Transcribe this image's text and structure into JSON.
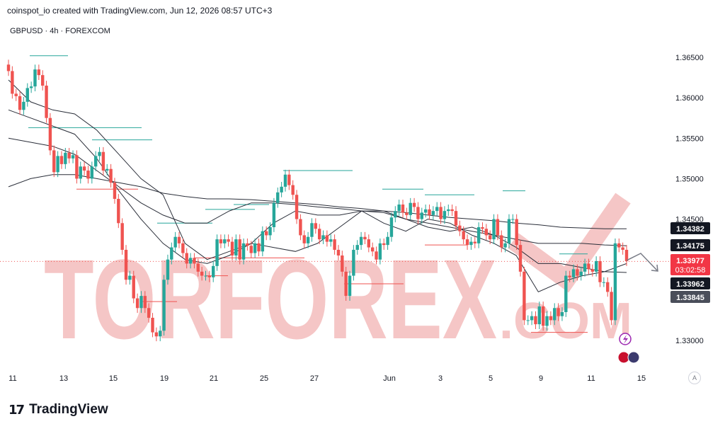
{
  "header": {
    "credit": "coinspot_io created with TradingView.com, Jun 12, 2026 08:57 UTC+3",
    "symbol_line": "GBPUSD · 4h · FOREXCOM"
  },
  "footer": {
    "brand": "TradingView",
    "auto_button": "A"
  },
  "watermark": {
    "text": "TORFOREX",
    "suffix": ".COM"
  },
  "colors": {
    "bull": "#26a69a",
    "bear": "#ef5350",
    "ma": "#2a2e39",
    "watermark": "#f5c6c6",
    "price_label": "#f23645",
    "label_dark": "#131722"
  },
  "chart_data": {
    "type": "candlestick",
    "symbol": "GBPUSD",
    "timeframe": "4h",
    "source": "FOREXCOM",
    "x_tick_labels": [
      "11",
      "13",
      "15",
      "19",
      "21",
      "25",
      "27",
      "Jun",
      "3",
      "5",
      "9",
      "11",
      "15"
    ],
    "y_ticks": [
      1.33,
      1.335,
      1.34,
      1.345,
      1.35,
      1.355,
      1.36,
      1.365
    ],
    "y_tick_labels": [
      "1.33000",
      "1.33500",
      "1.34000",
      "1.34500",
      "1.35000",
      "1.35500",
      "1.36000",
      "1.36500"
    ],
    "ylim": [
      1.3282,
      1.3672
    ],
    "candles_closes": [
      1.3633,
      1.3605,
      1.3602,
      1.3585,
      1.3595,
      1.3612,
      1.3614,
      1.3635,
      1.3628,
      1.3615,
      1.3575,
      1.3535,
      1.3508,
      1.3528,
      1.3518,
      1.3532,
      1.3525,
      1.3529,
      1.35,
      1.3515,
      1.351,
      1.35,
      1.3515,
      1.3528,
      1.3533,
      1.351,
      1.3512,
      1.3495,
      1.3475,
      1.3445,
      1.3412,
      1.3375,
      1.338,
      1.3352,
      1.334,
      1.3355,
      1.334,
      1.3328,
      1.331,
      1.3305,
      1.3312,
      1.3375,
      1.34,
      1.3415,
      1.3428,
      1.342,
      1.3408,
      1.3395,
      1.3402,
      1.3395,
      1.3385,
      1.338,
      1.338,
      1.3378,
      1.3392,
      1.3425,
      1.342,
      1.3425,
      1.3422,
      1.3405,
      1.3425,
      1.34,
      1.342,
      1.3417,
      1.3408,
      1.342,
      1.341,
      1.3435,
      1.343,
      1.344,
      1.347,
      1.3483,
      1.349,
      1.3505,
      1.3492,
      1.348,
      1.345,
      1.343,
      1.342,
      1.3428,
      1.3445,
      1.3438,
      1.3425,
      1.343,
      1.3422,
      1.3425,
      1.3412,
      1.3405,
      1.3385,
      1.3355,
      1.338,
      1.3412,
      1.3418,
      1.3428,
      1.3425,
      1.3415,
      1.341,
      1.34,
      1.342,
      1.3418,
      1.3428,
      1.3452,
      1.346,
      1.3468,
      1.3458,
      1.3455,
      1.347,
      1.3465,
      1.345,
      1.3458,
      1.3462,
      1.3455,
      1.346,
      1.3465,
      1.345,
      1.346,
      1.3462,
      1.346,
      1.3442,
      1.3435,
      1.3425,
      1.3418,
      1.3422,
      1.342,
      1.344,
      1.3438,
      1.343,
      1.3425,
      1.345,
      1.343,
      1.3415,
      1.342,
      1.345,
      1.345,
      1.3418,
      1.3385,
      1.3325,
      1.3325,
      1.333,
      1.332,
      1.3342,
      1.3318,
      1.333,
      1.3325,
      1.334,
      1.333,
      1.3335,
      1.338,
      1.3378,
      1.3388,
      1.338,
      1.3385,
      1.3395,
      1.3388,
      1.3385,
      1.3398,
      1.3372,
      1.3372,
      1.336,
      1.3325,
      1.342,
      1.3415,
      1.3412,
      1.3398
    ],
    "moving_averages": [
      {
        "values": [
          1.3622,
          1.3595,
          1.3585,
          1.358,
          1.356,
          1.353,
          1.35,
          1.348,
          1.342,
          1.34,
          1.341,
          1.342,
          1.3415,
          1.341,
          1.342,
          1.344,
          1.346,
          1.3445,
          1.3435,
          1.345,
          1.3445,
          1.343,
          1.342,
          1.3405,
          1.336,
          1.3372,
          1.338,
          1.3385,
          1.3395
        ]
      },
      {
        "values": [
          1.3585,
          1.3575,
          1.3565,
          1.3555,
          1.3525,
          1.3485,
          1.345,
          1.342,
          1.34,
          1.3395,
          1.3405,
          1.342,
          1.3445,
          1.346,
          1.3455,
          1.3455,
          1.346,
          1.346,
          1.345,
          1.344,
          1.3435,
          1.344,
          1.343,
          1.3415,
          1.3395,
          1.3395,
          1.339,
          1.3385,
          1.3384
        ]
      },
      {
        "values": [
          1.355,
          1.3545,
          1.354,
          1.353,
          1.351,
          1.349,
          1.347,
          1.3455,
          1.3445,
          1.3445,
          1.346,
          1.347,
          1.347,
          1.3468,
          1.3465,
          1.3463,
          1.346,
          1.3458,
          1.345,
          1.3445,
          1.344,
          1.3435,
          1.343,
          1.3425,
          1.342,
          1.342,
          1.342,
          1.3418,
          1.3417
        ]
      },
      {
        "values": [
          1.349,
          1.35,
          1.3505,
          1.3505,
          1.35,
          1.3495,
          1.349,
          1.3482,
          1.3478,
          1.3475,
          1.3475,
          1.3474,
          1.3472,
          1.347,
          1.3468,
          1.3465,
          1.3463,
          1.346,
          1.3458,
          1.3455,
          1.3452,
          1.345,
          1.3448,
          1.3445,
          1.3443,
          1.344,
          1.3439,
          1.3438,
          1.3438
        ]
      }
    ],
    "price_labels": [
      {
        "value": "1.34382",
        "style": "dark"
      },
      {
        "value": "1.34175",
        "style": "dark"
      },
      {
        "value": "1.33977",
        "style": "red",
        "countdown": "03:02:58"
      },
      {
        "value": "1.33962",
        "style": "dark"
      },
      {
        "value": "1.33845",
        "style": "grey"
      }
    ],
    "last_price": 1.33977,
    "grid": false
  }
}
